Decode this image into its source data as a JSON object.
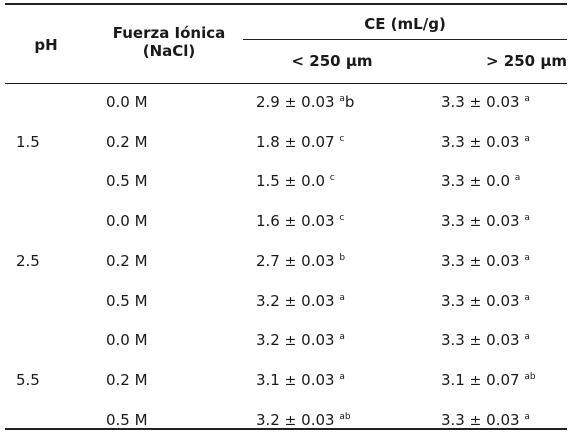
{
  "header": {
    "ph": "pH",
    "fuerza_line1": "Fuerza Iónica",
    "fuerza_line2": "(NaCl)",
    "ce": "CE (mL/g)",
    "small": "< 250 µm",
    "large": "> 250 µm"
  },
  "rows": [
    {
      "ph": "",
      "ionic": "0.0 M",
      "small_val": "2.9",
      "small_err": "0.03",
      "small_sup": "a",
      "small_suffix": "b",
      "large_val": "3.3",
      "large_err": "0.03",
      "large_sup": "a"
    },
    {
      "ph": "1.5",
      "ionic": "0.2 M",
      "small_val": "1.8",
      "small_err": "0.07",
      "small_sup": "c",
      "small_suffix": "",
      "large_val": "3.3",
      "large_err": "0.03",
      "large_sup": "a"
    },
    {
      "ph": "",
      "ionic": "0.5 M",
      "small_val": "1.5",
      "small_err": "0.0",
      "small_sup": "c",
      "small_suffix": "",
      "large_val": "3.3",
      "large_err": "0.0",
      "large_sup": "a"
    },
    {
      "ph": "",
      "ionic": "0.0 M",
      "small_val": "1.6",
      "small_err": "0.03",
      "small_sup": "c",
      "small_suffix": "",
      "large_val": "3.3",
      "large_err": "0.03",
      "large_sup": "a"
    },
    {
      "ph": "2.5",
      "ionic": "0.2 M",
      "small_val": "2.7",
      "small_err": "0.03",
      "small_sup": "b",
      "small_suffix": "",
      "large_val": "3.3",
      "large_err": "0.03",
      "large_sup": "a"
    },
    {
      "ph": "",
      "ionic": "0.5 M",
      "small_val": "3.2",
      "small_err": "0.03",
      "small_sup": "a",
      "small_suffix": "",
      "large_val": "3.3",
      "large_err": "0.03",
      "large_sup": "a"
    },
    {
      "ph": "",
      "ionic": "0.0 M",
      "small_val": "3.2",
      "small_err": "0.03",
      "small_sup": "a",
      "small_suffix": "",
      "large_val": "3.3",
      "large_err": "0.03",
      "large_sup": "a"
    },
    {
      "ph": "5.5",
      "ionic": "0.2 M",
      "small_val": "3.1",
      "small_err": "0.03",
      "small_sup": "a",
      "small_suffix": "",
      "large_val": "3.1",
      "large_err": "0.07",
      "large_sup": "ab"
    },
    {
      "ph": "",
      "ionic": "0.5 M",
      "small_val": "3.2",
      "small_err": "0.03",
      "small_sup": "ab",
      "small_suffix": "",
      "large_val": "3.3",
      "large_err": "0.03",
      "large_sup": "a"
    }
  ]
}
